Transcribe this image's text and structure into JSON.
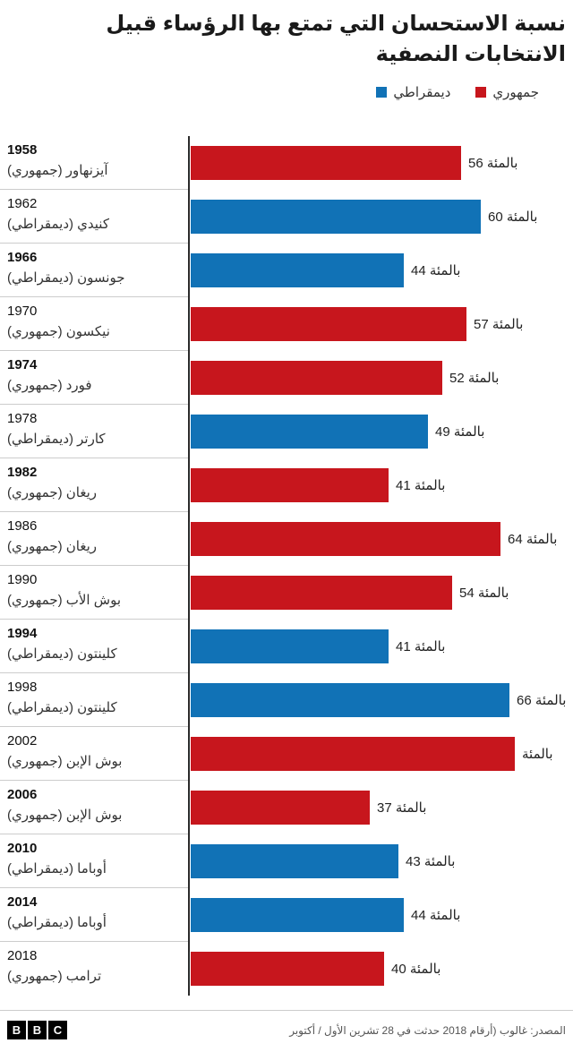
{
  "header": {
    "title_line1": "نسبة الاستحسان التي تمتع بها الرؤساء قبيل",
    "title_line2": "الانتخابات النصفية"
  },
  "legend": {
    "items": [
      {
        "label": "ديمقراطي",
        "party": "dem"
      },
      {
        "label": "جمهوري",
        "party": "rep"
      }
    ]
  },
  "party_colors": {
    "dem": "#1172B6",
    "rep": "#C7161D"
  },
  "chart_data": {
    "type": "bar",
    "orientation": "horizontal",
    "title": "نسبة الاستحسان التي تمتع بها الرؤساء قبيل الانتخابات النصفية",
    "unit_word": "بالمئة",
    "xlim": [
      0,
      70
    ],
    "grid": false,
    "legend_position": "top-right",
    "legend_entries": [
      "ديمقراطي",
      "جمهوري"
    ],
    "rows": [
      {
        "year": "1958",
        "president": "آيزنهاور (جمهوري)",
        "party": "rep",
        "value": 56,
        "value_label": "56 بالمئة",
        "year_bold": true
      },
      {
        "year": "1962",
        "president": "كنيدي (ديمقراطي)",
        "party": "dem",
        "value": 60,
        "value_label": "60 بالمئة",
        "year_bold": false
      },
      {
        "year": "1966",
        "president": "جونسون (ديمقراطي)",
        "party": "dem",
        "value": 44,
        "value_label": "44 بالمئة",
        "year_bold": true
      },
      {
        "year": "1970",
        "president": "نيكسون (جمهوري)",
        "party": "rep",
        "value": 57,
        "value_label": "57 بالمئة",
        "year_bold": false
      },
      {
        "year": "1974",
        "president": "فورد (جمهوري)",
        "party": "rep",
        "value": 52,
        "value_label": "52 بالمئة",
        "year_bold": true
      },
      {
        "year": "1978",
        "president": "كارتر (ديمقراطي)",
        "party": "dem",
        "value": 49,
        "value_label": "49 بالمئة",
        "year_bold": false
      },
      {
        "year": "1982",
        "president": "ريغان (جمهوري)",
        "party": "rep",
        "value": 41,
        "value_label": "41 بالمئة",
        "year_bold": true
      },
      {
        "year": "1986",
        "president": "ريغان (جمهوري)",
        "party": "rep",
        "value": 64,
        "value_label": "64 بالمئة",
        "year_bold": false
      },
      {
        "year": "1990",
        "president": "بوش الأب (جمهوري)",
        "party": "rep",
        "value": 54,
        "value_label": "54 بالمئة",
        "year_bold": false
      },
      {
        "year": "1994",
        "president": "كلينتون (ديمقراطي)",
        "party": "dem",
        "value": 41,
        "value_label": "41 بالمئة",
        "year_bold": true
      },
      {
        "year": "1998",
        "president": "كلينتون (ديمقراطي)",
        "party": "dem",
        "value": 66,
        "value_label": "66 بالمئة",
        "year_bold": false
      },
      {
        "year": "2002",
        "president": "بوش الإبن (جمهوري)",
        "party": "rep",
        "value": 67,
        "value_label": "بالمئة",
        "year_bold": false
      },
      {
        "year": "2006",
        "president": "بوش الإبن (جمهوري)",
        "party": "rep",
        "value": 37,
        "value_label": "37 بالمئة",
        "year_bold": true
      },
      {
        "year": "2010",
        "president": "أوباما (ديمقراطي)",
        "party": "dem",
        "value": 43,
        "value_label": "43 بالمئة",
        "year_bold": true
      },
      {
        "year": "2014",
        "president": "أوباما (ديمقراطي)",
        "party": "dem",
        "value": 44,
        "value_label": "44 بالمئة",
        "year_bold": true
      },
      {
        "year": "2018",
        "president": "ترامب (جمهوري)",
        "party": "rep",
        "value": 40,
        "value_label": "40 بالمئة",
        "year_bold": false
      }
    ]
  },
  "footer": {
    "source": "المصدر: غالوب (أرقام 2018 حدثت في 28 تشرين الأول / أكتوبر",
    "bbc_letters": [
      "B",
      "B",
      "C"
    ]
  }
}
